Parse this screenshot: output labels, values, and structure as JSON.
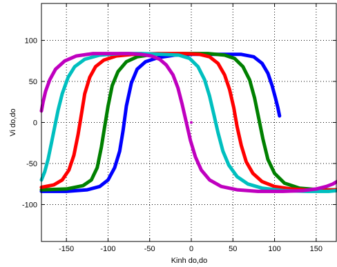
{
  "chart_data": {
    "type": "line",
    "title": "",
    "xlabel": "Kinh do,do",
    "ylabel": "Vi do,do",
    "xlim": [
      -180,
      175
    ],
    "ylim": [
      -145,
      145
    ],
    "xticks": [
      -150,
      -100,
      -50,
      0,
      50,
      100,
      150
    ],
    "yticks": [
      -100,
      -50,
      0,
      50,
      100
    ],
    "xtick_labels": [
      "-150",
      "-100",
      "-50",
      "0",
      "50",
      "100",
      "150"
    ],
    "ytick_labels": [
      "-100",
      "-50",
      "0",
      "50",
      "100"
    ],
    "grid": true,
    "grid_style": "dotted",
    "series": [
      {
        "color": "#0000ff",
        "values": [
          [
            -180,
            -84
          ],
          [
            -150,
            -84
          ],
          [
            -125,
            -82
          ],
          [
            -110,
            -78
          ],
          [
            -100,
            -70
          ],
          [
            -92,
            -55
          ],
          [
            -86,
            -35
          ],
          [
            -82,
            -10
          ],
          [
            -78,
            20
          ],
          [
            -72,
            48
          ],
          [
            -65,
            65
          ],
          [
            -55,
            74
          ],
          [
            -40,
            79
          ],
          [
            -20,
            82
          ],
          [
            0,
            83
          ],
          [
            30,
            83
          ],
          [
            60,
            83
          ],
          [
            75,
            80
          ],
          [
            85,
            72
          ],
          [
            92,
            60
          ],
          [
            97,
            45
          ],
          [
            101,
            30
          ],
          [
            104,
            18
          ],
          [
            106,
            8
          ]
        ]
      },
      {
        "color": "#008000",
        "values": [
          [
            -180,
            -82
          ],
          [
            -150,
            -81
          ],
          [
            -130,
            -77
          ],
          [
            -120,
            -70
          ],
          [
            -113,
            -55
          ],
          [
            -108,
            -30
          ],
          [
            -104,
            -5
          ],
          [
            -100,
            20
          ],
          [
            -95,
            45
          ],
          [
            -88,
            62
          ],
          [
            -78,
            74
          ],
          [
            -65,
            80
          ],
          [
            -45,
            83
          ],
          [
            -10,
            84
          ],
          [
            20,
            84
          ],
          [
            40,
            82
          ],
          [
            52,
            78
          ],
          [
            62,
            68
          ],
          [
            70,
            52
          ],
          [
            76,
            30
          ],
          [
            81,
            5
          ],
          [
            86,
            -20
          ],
          [
            92,
            -45
          ],
          [
            100,
            -62
          ],
          [
            112,
            -74
          ],
          [
            130,
            -80
          ],
          [
            155,
            -82
          ],
          [
            175,
            -82
          ]
        ]
      },
      {
        "color": "#ff0000",
        "values": [
          [
            -180,
            -79
          ],
          [
            -165,
            -76
          ],
          [
            -155,
            -70
          ],
          [
            -147,
            -58
          ],
          [
            -141,
            -40
          ],
          [
            -136,
            -15
          ],
          [
            -132,
            10
          ],
          [
            -128,
            35
          ],
          [
            -122,
            55
          ],
          [
            -115,
            68
          ],
          [
            -105,
            76
          ],
          [
            -90,
            81
          ],
          [
            -70,
            83
          ],
          [
            -40,
            84
          ],
          [
            -10,
            84
          ],
          [
            10,
            83
          ],
          [
            22,
            80
          ],
          [
            32,
            72
          ],
          [
            40,
            58
          ],
          [
            46,
            40
          ],
          [
            51,
            18
          ],
          [
            55,
            -5
          ],
          [
            60,
            -28
          ],
          [
            66,
            -48
          ],
          [
            74,
            -62
          ],
          [
            85,
            -72
          ],
          [
            100,
            -78
          ],
          [
            120,
            -81
          ],
          [
            150,
            -83
          ],
          [
            175,
            -82
          ]
        ]
      },
      {
        "color": "#00bfbf",
        "values": [
          [
            -180,
            -70
          ],
          [
            -176,
            -60
          ],
          [
            -172,
            -45
          ],
          [
            -168,
            -25
          ],
          [
            -164,
            -5
          ],
          [
            -160,
            15
          ],
          [
            -155,
            35
          ],
          [
            -148,
            55
          ],
          [
            -140,
            68
          ],
          [
            -128,
            77
          ],
          [
            -110,
            82
          ],
          [
            -85,
            84
          ],
          [
            -60,
            84
          ],
          [
            -35,
            83
          ],
          [
            -15,
            82
          ],
          [
            -2,
            78
          ],
          [
            8,
            68
          ],
          [
            16,
            52
          ],
          [
            22,
            32
          ],
          [
            27,
            10
          ],
          [
            32,
            -12
          ],
          [
            38,
            -35
          ],
          [
            45,
            -52
          ],
          [
            55,
            -66
          ],
          [
            68,
            -75
          ],
          [
            85,
            -80
          ],
          [
            110,
            -83
          ],
          [
            140,
            -84
          ],
          [
            165,
            -84
          ],
          [
            175,
            -83
          ]
        ]
      },
      {
        "color": "#bf00bf",
        "values": [
          [
            -180,
            14
          ],
          [
            -178,
            25
          ],
          [
            -175,
            38
          ],
          [
            -170,
            52
          ],
          [
            -163,
            65
          ],
          [
            -152,
            75
          ],
          [
            -138,
            81
          ],
          [
            -118,
            84
          ],
          [
            -95,
            84
          ],
          [
            -75,
            84
          ],
          [
            -60,
            83
          ],
          [
            -48,
            81
          ],
          [
            -38,
            77
          ],
          [
            -30,
            70
          ],
          [
            -22,
            58
          ],
          [
            -16,
            42
          ],
          [
            -11,
            22
          ],
          [
            -6,
            0
          ],
          [
            -1,
            -22
          ],
          [
            5,
            -42
          ],
          [
            12,
            -58
          ],
          [
            22,
            -70
          ],
          [
            36,
            -78
          ],
          [
            55,
            -82
          ],
          [
            80,
            -84
          ],
          [
            110,
            -84
          ],
          [
            135,
            -83
          ],
          [
            150,
            -81
          ],
          [
            162,
            -78
          ],
          [
            170,
            -75
          ],
          [
            175,
            -72
          ]
        ]
      }
    ],
    "annotations": [
      {
        "type": "point",
        "color": "#bf00bf",
        "x": 0,
        "y": 0
      }
    ]
  }
}
